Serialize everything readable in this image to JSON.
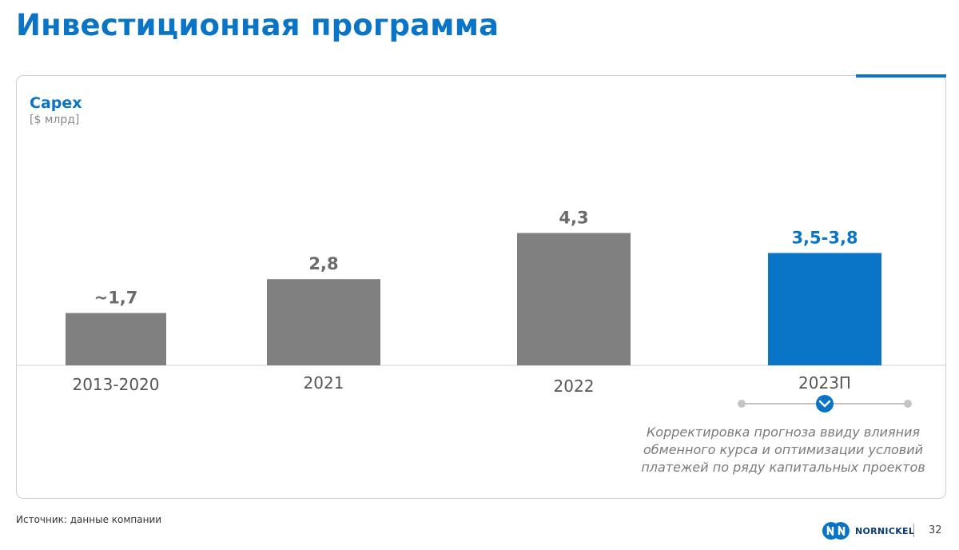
{
  "page": {
    "title": "Инвестиционная программа",
    "source_note": "Источник: данные компании",
    "page_number": "32",
    "brand": "NORNICKEL"
  },
  "note": {
    "lines": [
      "Корректировка прогноза ввиду влияния",
      "обменного курса и оптимизации условий",
      "платежей по ряду капитальных проектов"
    ],
    "icon": "chevron-down-icon"
  },
  "colors": {
    "accent": "#0a74c6",
    "bar_gray": "#808080",
    "label_gray": "#6b6b6b"
  },
  "chart_data": {
    "type": "bar",
    "title": "Capex",
    "ylabel": "[$ млрд]",
    "categories": [
      "2013-2020",
      "2021",
      "2022",
      "2023П"
    ],
    "values": [
      1.7,
      2.8,
      4.3,
      3.65
    ],
    "value_labels": [
      "~1,7",
      "2,8",
      "4,3",
      "3,5-3,8"
    ],
    "highlight_index": 3,
    "ylim": [
      0,
      6
    ],
    "grid": false,
    "legend": "none"
  }
}
